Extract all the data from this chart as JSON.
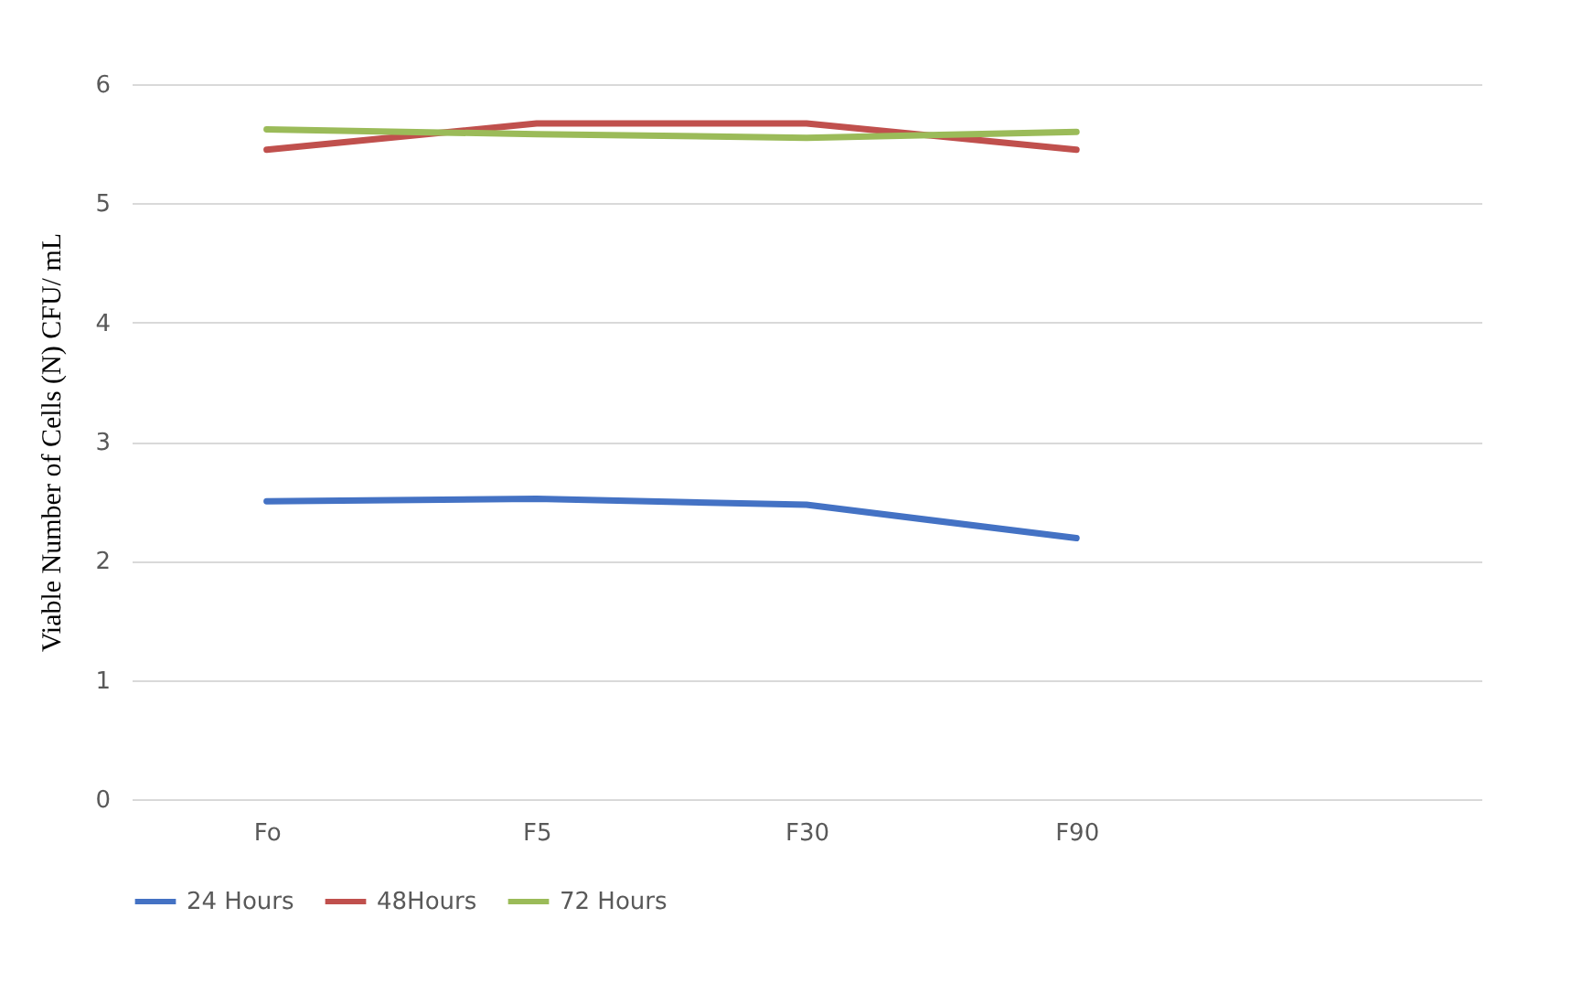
{
  "chart_data": {
    "type": "line",
    "ylabel": "Viable Number of Cells (N) CFU/ mL",
    "categories": [
      "Fo",
      "F5",
      "F30",
      "F90",
      null
    ],
    "series": [
      {
        "name": "24 Hours",
        "color": "#4472c4",
        "values": [
          2.5,
          2.52,
          2.47,
          2.19,
          null
        ]
      },
      {
        "name": "48Hours",
        "color": "#c0504d",
        "values": [
          5.45,
          5.67,
          5.67,
          5.45,
          null
        ]
      },
      {
        "name": "72 Hours",
        "color": "#9bbb59",
        "values": [
          5.62,
          5.58,
          5.55,
          5.6,
          null
        ]
      }
    ],
    "ylim": [
      0,
      6
    ],
    "yticks": [
      0,
      1,
      2,
      3,
      4,
      5,
      6
    ],
    "grid": "y",
    "legend": "bottom",
    "marker": "none",
    "line_style": "solid"
  }
}
